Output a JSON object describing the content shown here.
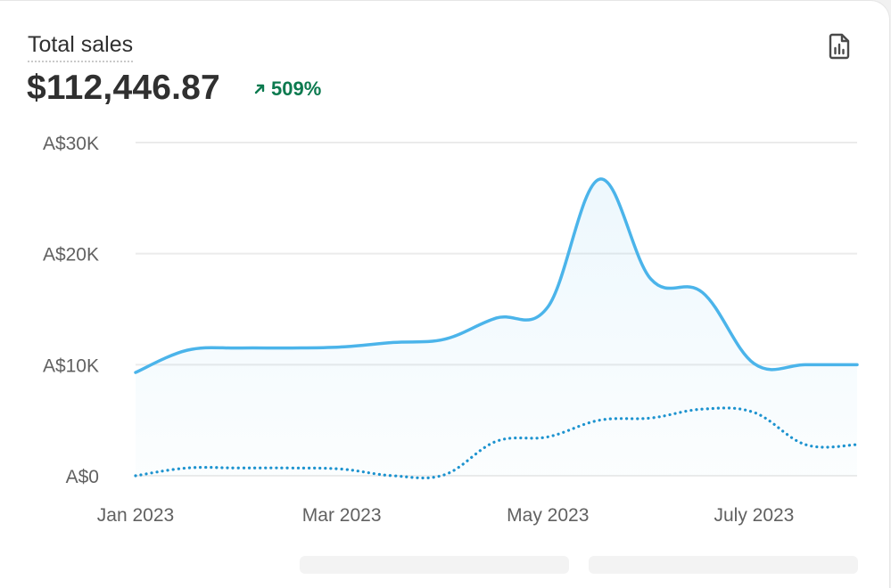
{
  "card": {
    "title": "Total sales",
    "total": "$112,446.87",
    "change": "509%",
    "report_icon": "report-icon",
    "trend_icon": "arrow-up-right-icon"
  },
  "colors": {
    "primary_series": "#4bb4ea",
    "comparison_series": "#1d93cf",
    "grid": "#ebebeb",
    "axis_text": "#616161",
    "positive": "#0c7a4f"
  },
  "chart_data": {
    "type": "area",
    "x": [
      "2023-01-01",
      "2023-01-15",
      "2023-02-01",
      "2023-02-15",
      "2023-03-01",
      "2023-03-15",
      "2023-04-01",
      "2023-04-15",
      "2023-05-01",
      "2023-05-15",
      "2023-06-01",
      "2023-06-15",
      "2023-07-01",
      "2023-07-15",
      "2023-08-01"
    ],
    "x_tick_labels": [
      "Jan 2023",
      "Mar 2023",
      "May 2023",
      "July 2023"
    ],
    "y_tick_labels": [
      "A$0",
      "A$10K",
      "A$20K",
      "A$30K"
    ],
    "ylim": [
      0,
      30000
    ],
    "grid": true,
    "series": [
      {
        "style": "solid-area",
        "values": [
          9300,
          11300,
          11500,
          11500,
          11600,
          12000,
          12300,
          14200,
          15200,
          26700,
          17700,
          16500,
          10100,
          10000,
          10000
        ]
      },
      {
        "style": "dotted",
        "values": [
          0,
          700,
          700,
          700,
          600,
          0,
          100,
          3100,
          3500,
          5000,
          5200,
          6000,
          5700,
          2800,
          2800
        ]
      }
    ]
  }
}
